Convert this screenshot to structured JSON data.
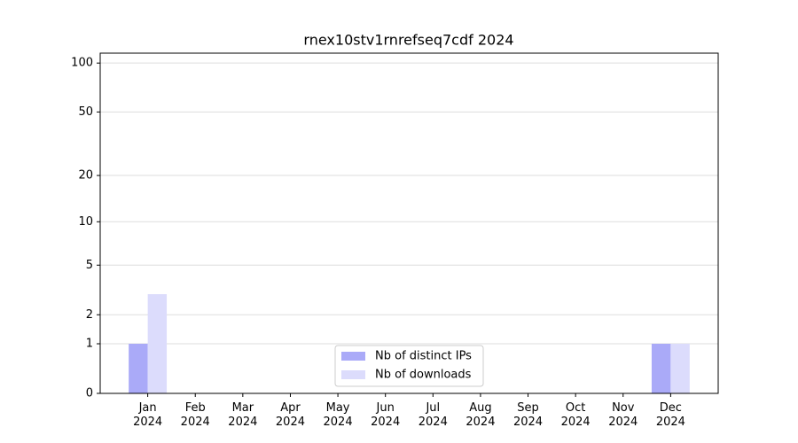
{
  "chart_data": {
    "type": "bar",
    "title": "rnex10stv1rnrefseq7cdf 2024",
    "categories": [
      "Jan\n2024",
      "Feb\n2024",
      "Mar\n2024",
      "Apr\n2024",
      "May\n2024",
      "Jun\n2024",
      "Jul\n2024",
      "Aug\n2024",
      "Sep\n2024",
      "Oct\n2024",
      "Nov\n2024",
      "Dec\n2024"
    ],
    "series": [
      {
        "name": "Nb of distinct IPs",
        "color": "#aaaaf8",
        "values": [
          1,
          0,
          0,
          0,
          0,
          0,
          0,
          0,
          0,
          0,
          0,
          1
        ]
      },
      {
        "name": "Nb of downloads",
        "color": "#dcdcfc",
        "values": [
          3,
          0,
          0,
          0,
          0,
          0,
          0,
          0,
          0,
          0,
          0,
          1
        ]
      }
    ],
    "yscale": "log1p",
    "ylim": [
      0,
      115
    ],
    "yticks": [
      0,
      1,
      2,
      5,
      10,
      20,
      50,
      100
    ],
    "grid": true,
    "legend": "lower center"
  }
}
